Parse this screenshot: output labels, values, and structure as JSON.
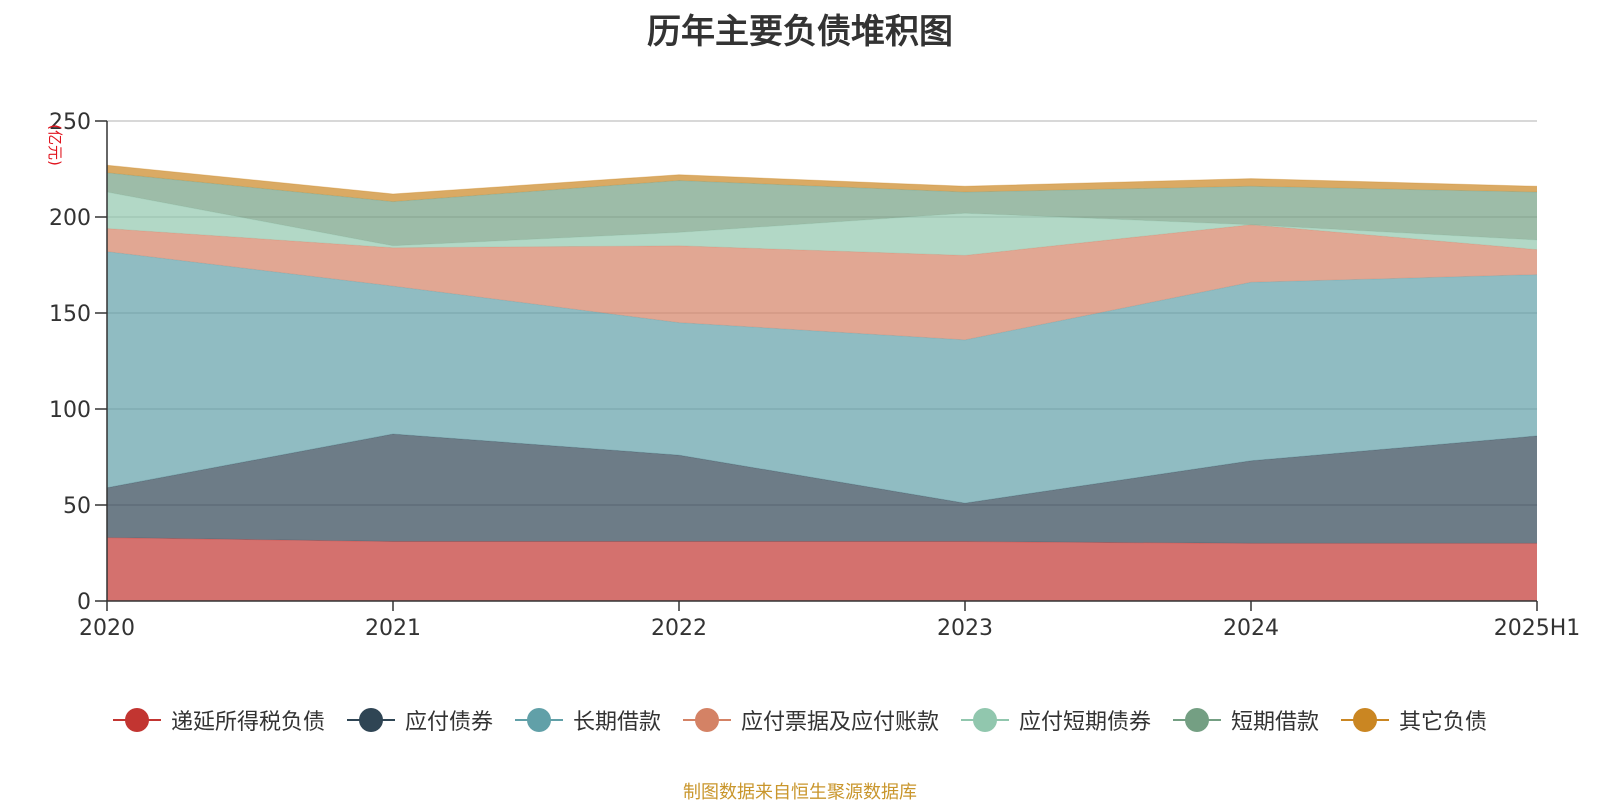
{
  "chart_data": {
    "type": "area",
    "title": "历年主要负债堆积图",
    "ylabel": "(亿元)",
    "categories": [
      "2020",
      "2021",
      "2022",
      "2023",
      "2024",
      "2025H1"
    ],
    "y_ticks": [
      "0",
      "50",
      "100",
      "150",
      "200",
      "250"
    ],
    "ylim": [
      0,
      250
    ],
    "stacked": true,
    "grid": true,
    "legend_position": "bottom",
    "series": [
      {
        "name": "递延所得税负债",
        "color": "#C23531",
        "values": [
          33,
          31,
          31,
          31,
          30,
          30
        ]
      },
      {
        "name": "应付债券",
        "color": "#2F4554",
        "values": [
          26,
          56,
          45,
          20,
          43,
          56
        ]
      },
      {
        "name": "长期借款",
        "color": "#61A0A8",
        "values": [
          123,
          77,
          69,
          85,
          93,
          84
        ]
      },
      {
        "name": "应付票据及应付账款",
        "color": "#D48265",
        "values": [
          12,
          20,
          40,
          44,
          30,
          13
        ]
      },
      {
        "name": "应付短期债券",
        "color": "#91C7AE",
        "values": [
          19,
          1,
          7,
          22,
          0,
          5
        ]
      },
      {
        "name": "短期借款",
        "color": "#749F83",
        "values": [
          10,
          23,
          27,
          11,
          20,
          25
        ]
      },
      {
        "name": "其它负债",
        "color": "#CA8622",
        "values": [
          4,
          4,
          3,
          3,
          4,
          3
        ]
      }
    ]
  },
  "footer": "制图数据来自恒生聚源数据库"
}
